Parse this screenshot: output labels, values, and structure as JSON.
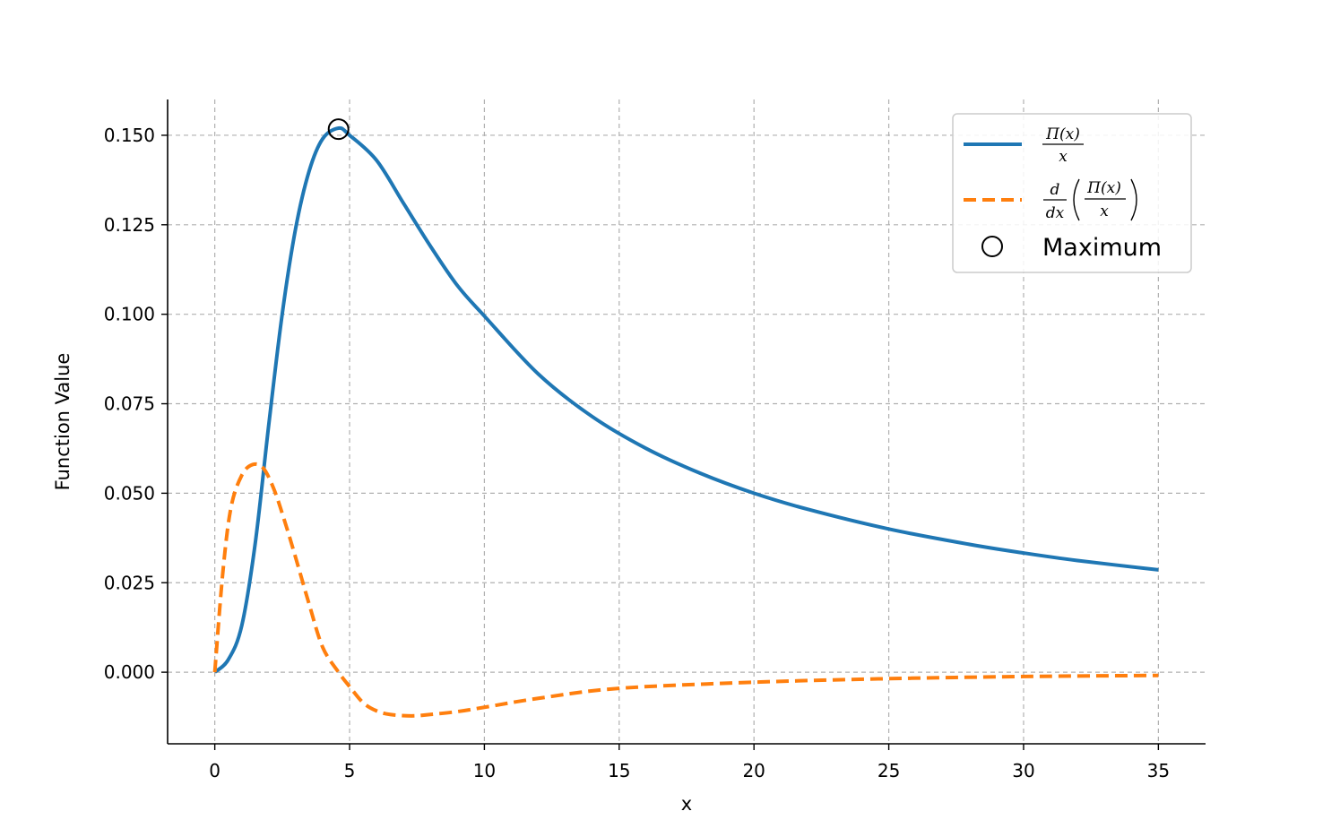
{
  "chart_data": {
    "type": "line",
    "xlabel": "x",
    "ylabel": "Function Value",
    "xlim": [
      -1.75,
      36.75
    ],
    "ylim": [
      -0.02,
      0.16
    ],
    "xticks": [
      0,
      5,
      10,
      15,
      20,
      25,
      30,
      35
    ],
    "xtick_labels": [
      "0",
      "5",
      "10",
      "15",
      "20",
      "25",
      "30",
      "35"
    ],
    "yticks": [
      0.0,
      0.025,
      0.05,
      0.075,
      0.1,
      0.125,
      0.15
    ],
    "ytick_labels": [
      "0.000",
      "0.025",
      "0.050",
      "0.075",
      "0.100",
      "0.125",
      "0.150"
    ],
    "grid": true,
    "legend_position": "top-right",
    "series": [
      {
        "name": "Π(x)/x",
        "style": "solid",
        "color": "#1f77b4",
        "x": [
          0,
          0.5,
          1,
          1.5,
          2,
          2.5,
          3,
          3.5,
          4,
          4.59,
          5,
          6,
          7,
          8,
          9,
          10,
          12,
          14,
          16,
          18,
          20,
          22,
          25,
          28,
          30,
          32,
          35
        ],
        "y": [
          0,
          0.0035,
          0.013,
          0.036,
          0.069,
          0.1,
          0.124,
          0.14,
          0.149,
          0.152,
          0.15,
          0.143,
          0.131,
          0.119,
          0.108,
          0.0995,
          0.0833,
          0.0714,
          0.0625,
          0.0556,
          0.05,
          0.0455,
          0.04,
          0.0357,
          0.0333,
          0.0312,
          0.0286
        ]
      },
      {
        "name": "d/dx (Π(x)/x)",
        "style": "dashed",
        "color": "#ff7f0e",
        "x": [
          0,
          0.3,
          0.6,
          1,
          1.4,
          1.8,
          2.2,
          2.6,
          3,
          3.5,
          4,
          4.59,
          5,
          5.5,
          6,
          6.5,
          7.3,
          8,
          9,
          10,
          12,
          15,
          20,
          25,
          30,
          35
        ],
        "y": [
          0,
          0.028,
          0.046,
          0.055,
          0.058,
          0.057,
          0.051,
          0.042,
          0.032,
          0.019,
          0.007,
          0,
          -0.004,
          -0.0085,
          -0.0108,
          -0.0118,
          -0.0122,
          -0.0118,
          -0.011,
          -0.0098,
          -0.0073,
          -0.0045,
          -0.0028,
          -0.0018,
          -0.0012,
          -0.0009
        ]
      }
    ],
    "markers": [
      {
        "name": "Maximum",
        "x": 4.59,
        "y": 0.1517,
        "shape": "open-circle",
        "color": "#000000"
      }
    ]
  },
  "legend": {
    "entries": [
      {
        "label": "Π(x)/x",
        "numerator": "Π(x)",
        "denominator": "x"
      },
      {
        "label": "d/dx (Π(x)/x)",
        "d_num": "d",
        "d_den": "dx",
        "numerator": "Π(x)",
        "denominator": "x"
      },
      {
        "label": "Maximum"
      }
    ]
  }
}
